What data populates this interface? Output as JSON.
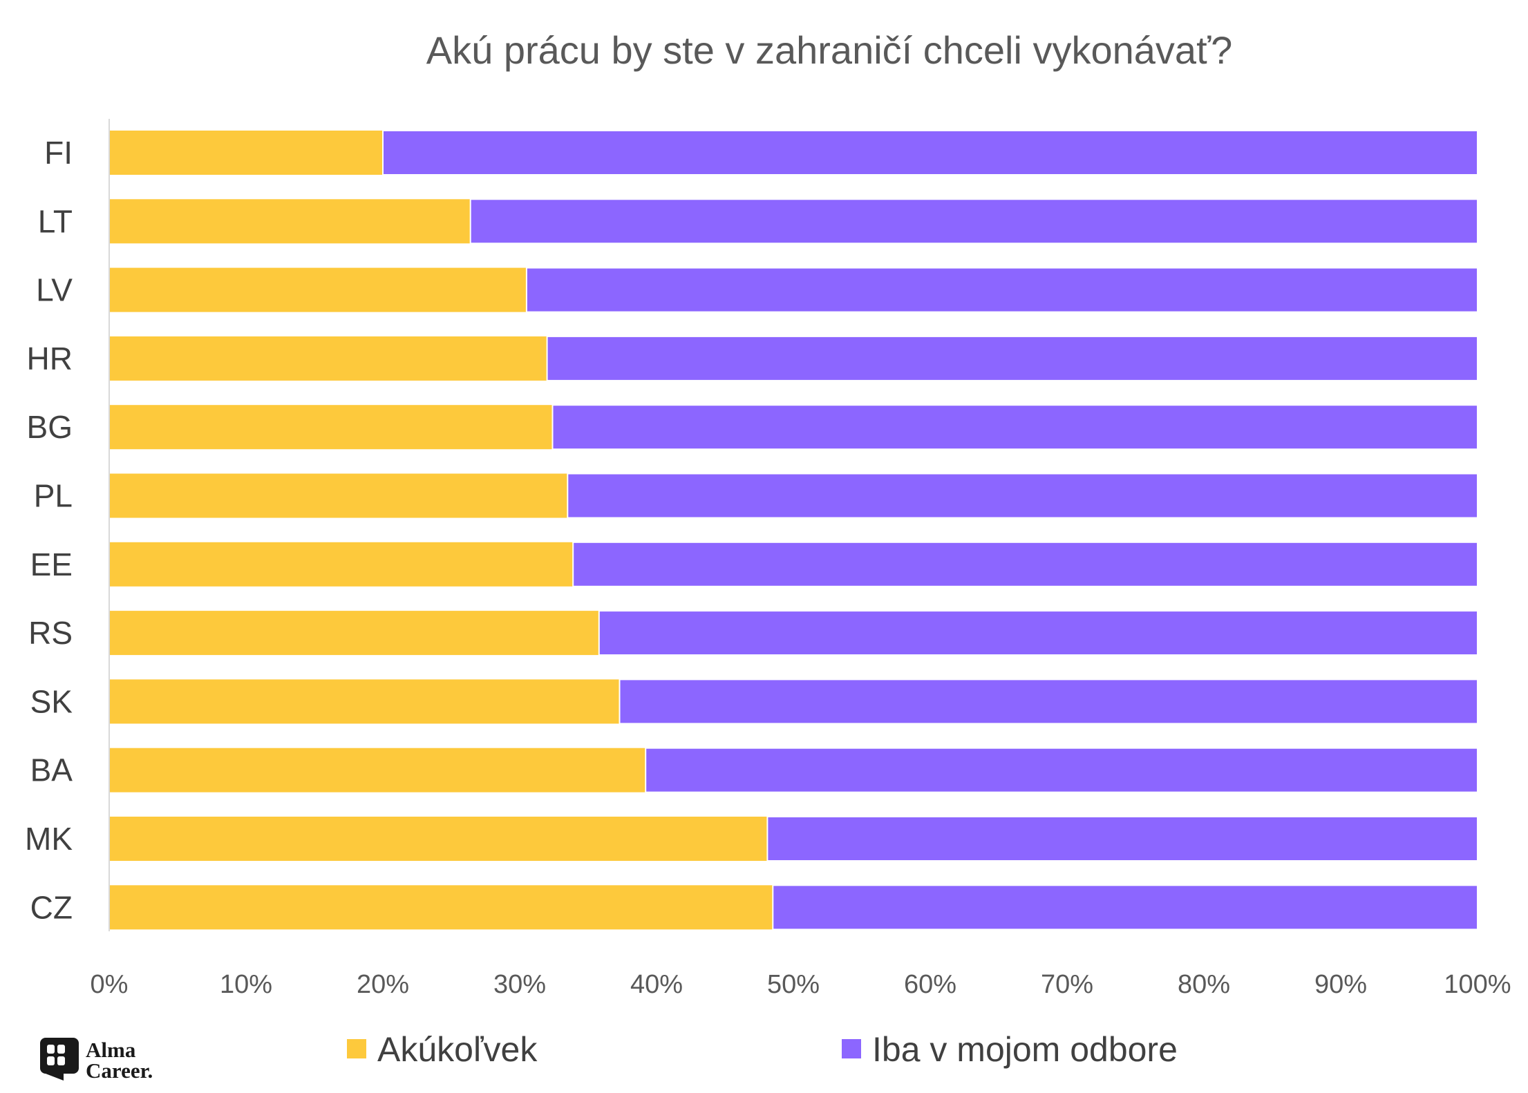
{
  "chart_data": {
    "type": "bar",
    "orientation": "horizontal",
    "stacked": "percent",
    "title": "Akú prácu by ste v zahraničí chceli vykonávať?",
    "categories": [
      "FI",
      "LT",
      "LV",
      "HR",
      "BG",
      "PL",
      "EE",
      "RS",
      "SK",
      "BA",
      "MK",
      "CZ"
    ],
    "series": [
      {
        "name": "Akúkoľvek",
        "color": "#FDC93C",
        "values": [
          20,
          26.4,
          30.5,
          32,
          32.4,
          33.5,
          33.9,
          35.8,
          37.3,
          39.2,
          48.1,
          48.5
        ]
      },
      {
        "name": "Iba v mojom odbore",
        "color": "#8C66FF",
        "values": [
          80,
          73.6,
          69.5,
          68,
          67.6,
          66.5,
          66.1,
          64.2,
          62.7,
          60.8,
          51.9,
          51.5
        ]
      }
    ],
    "xlim": [
      0,
      100
    ],
    "xticks": [
      "0%",
      "10%",
      "20%",
      "30%",
      "40%",
      "50%",
      "60%",
      "70%",
      "80%",
      "90%",
      "100%"
    ],
    "grid": false,
    "legend_position": "bottom"
  },
  "logo": {
    "name": "alma-career-logo",
    "line1": "Alma",
    "line2": "Career."
  }
}
